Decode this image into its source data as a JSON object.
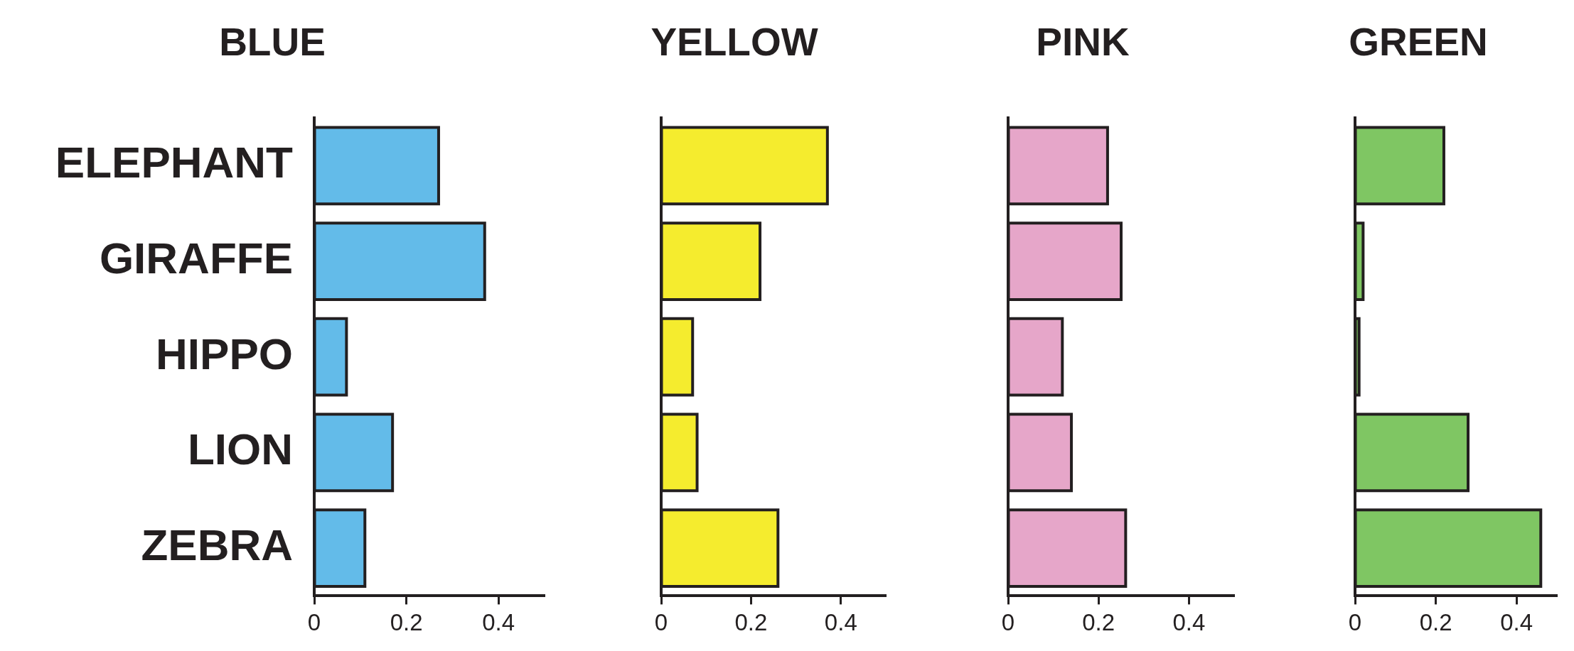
{
  "chart_data": [
    {
      "type": "bar",
      "orientation": "horizontal",
      "title": "BLUE",
      "categories": [
        "ELEPHANT",
        "GIRAFFE",
        "HIPPO",
        "LION",
        "ZEBRA"
      ],
      "values": [
        0.27,
        0.37,
        0.07,
        0.17,
        0.11
      ],
      "color": "#63bbe9",
      "xlim": [
        0,
        0.5
      ],
      "xticks": [
        0,
        0.2,
        0.4
      ]
    },
    {
      "type": "bar",
      "orientation": "horizontal",
      "title": "YELLOW",
      "categories": [
        null,
        null,
        null,
        null,
        null
      ],
      "values": [
        0.37,
        0.22,
        0.07,
        0.08,
        0.26
      ],
      "color": "#f5ec2e",
      "xlim": [
        0,
        0.5
      ],
      "xticks": [
        0,
        0.2,
        0.4
      ],
      "tick_labels": "x"
    },
    {
      "type": "bar",
      "orientation": "horizontal",
      "title": "PINK",
      "categories": [
        null,
        null,
        null,
        null,
        null
      ],
      "values": [
        0.22,
        0.25,
        0.12,
        0.14,
        0.26
      ],
      "color": "#e6a6c9",
      "xlim": [
        0,
        0.5
      ],
      "xticks": [
        0,
        0.2,
        0.4
      ],
      "tick_labels": "x"
    },
    {
      "type": "bar",
      "orientation": "horizontal",
      "title": "GREEN",
      "categories": [
        null,
        null,
        null,
        null,
        null
      ],
      "values": [
        0.22,
        0.02,
        0.01,
        0.28,
        0.46
      ],
      "color": "#7fc663",
      "xlim": [
        0,
        0.5
      ],
      "xticks": [
        0,
        0.2,
        0.4
      ],
      "tick_labels": "x"
    }
  ]
}
